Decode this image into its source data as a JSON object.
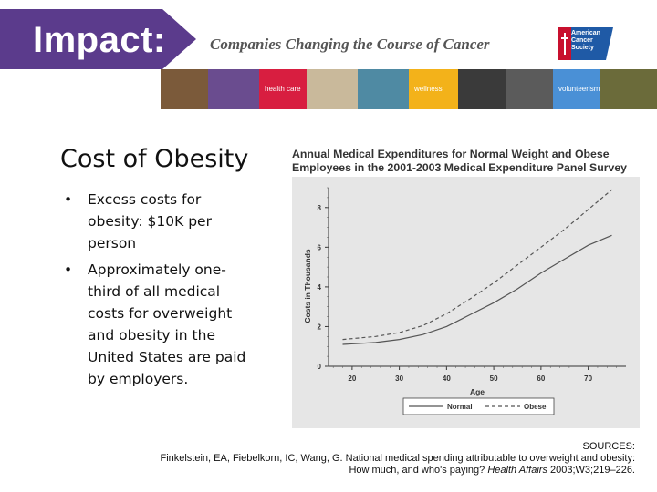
{
  "header": {
    "brand": "Impact:",
    "tagline": "Companies Changing the Course of Cancer",
    "logo_lines": [
      "American",
      "Cancer",
      "Society"
    ],
    "tiles": [
      {
        "label": "",
        "color": "#7b5a3a"
      },
      {
        "label": "",
        "color": "#6a4c8f"
      },
      {
        "label": "health care",
        "color": "#d81e40"
      },
      {
        "label": "",
        "color": "#c9b99b"
      },
      {
        "label": "",
        "color": "#4f8aa3"
      },
      {
        "label": "wellness",
        "color": "#f3b21a"
      },
      {
        "label": "",
        "color": "#3a3a3a"
      },
      {
        "label": "",
        "color": "#5b5b5b"
      },
      {
        "label": "volunteerism",
        "color": "#4a90d6"
      },
      {
        "label": "",
        "color": "#6b6b3a"
      }
    ]
  },
  "slide": {
    "title": "Cost of Obesity",
    "bullets": [
      "Excess costs for obesity: $10K per person",
      "Approximately one-third of all medical costs for overweight and obesity in the United States are paid by employers."
    ]
  },
  "chart_data": {
    "type": "line",
    "title": "Annual Medical Expenditures for Normal Weight and Obese Employees in the 2001-2003 Medical Expenditure Panel Survey",
    "xlabel": "Age",
    "ylabel": "Costs in Thousands",
    "xlim": [
      15,
      78
    ],
    "ylim": [
      0,
      9
    ],
    "x_ticks": [
      20,
      30,
      40,
      50,
      60,
      70
    ],
    "y_ticks": [
      0,
      2,
      4,
      6,
      8
    ],
    "legend_position": "bottom",
    "series": [
      {
        "name": "Normal",
        "dash": "solid",
        "x": [
          18,
          25,
          30,
          35,
          40,
          45,
          50,
          55,
          60,
          65,
          70,
          75
        ],
        "y": [
          1.1,
          1.2,
          1.35,
          1.6,
          2.0,
          2.6,
          3.2,
          3.9,
          4.7,
          5.4,
          6.1,
          6.6
        ]
      },
      {
        "name": "Obese",
        "dash": "dashed",
        "x": [
          18,
          25,
          30,
          35,
          40,
          45,
          50,
          55,
          60,
          65,
          70,
          75
        ],
        "y": [
          1.35,
          1.5,
          1.7,
          2.05,
          2.65,
          3.4,
          4.2,
          5.1,
          6.0,
          6.9,
          7.9,
          8.9
        ]
      }
    ],
    "colors": {
      "panel": "#e6e6e6",
      "line": "#555555"
    }
  },
  "sources": {
    "heading": "SOURCES:",
    "line1": "Finkelstein, EA, Fiebelkorn, IC, Wang, G. National medical spending attributable to overweight and obesity:",
    "line2_pre": "How much, and who's paying? ",
    "journal": "Health Affairs",
    "line2_post": " 2003;W3;219–226."
  }
}
